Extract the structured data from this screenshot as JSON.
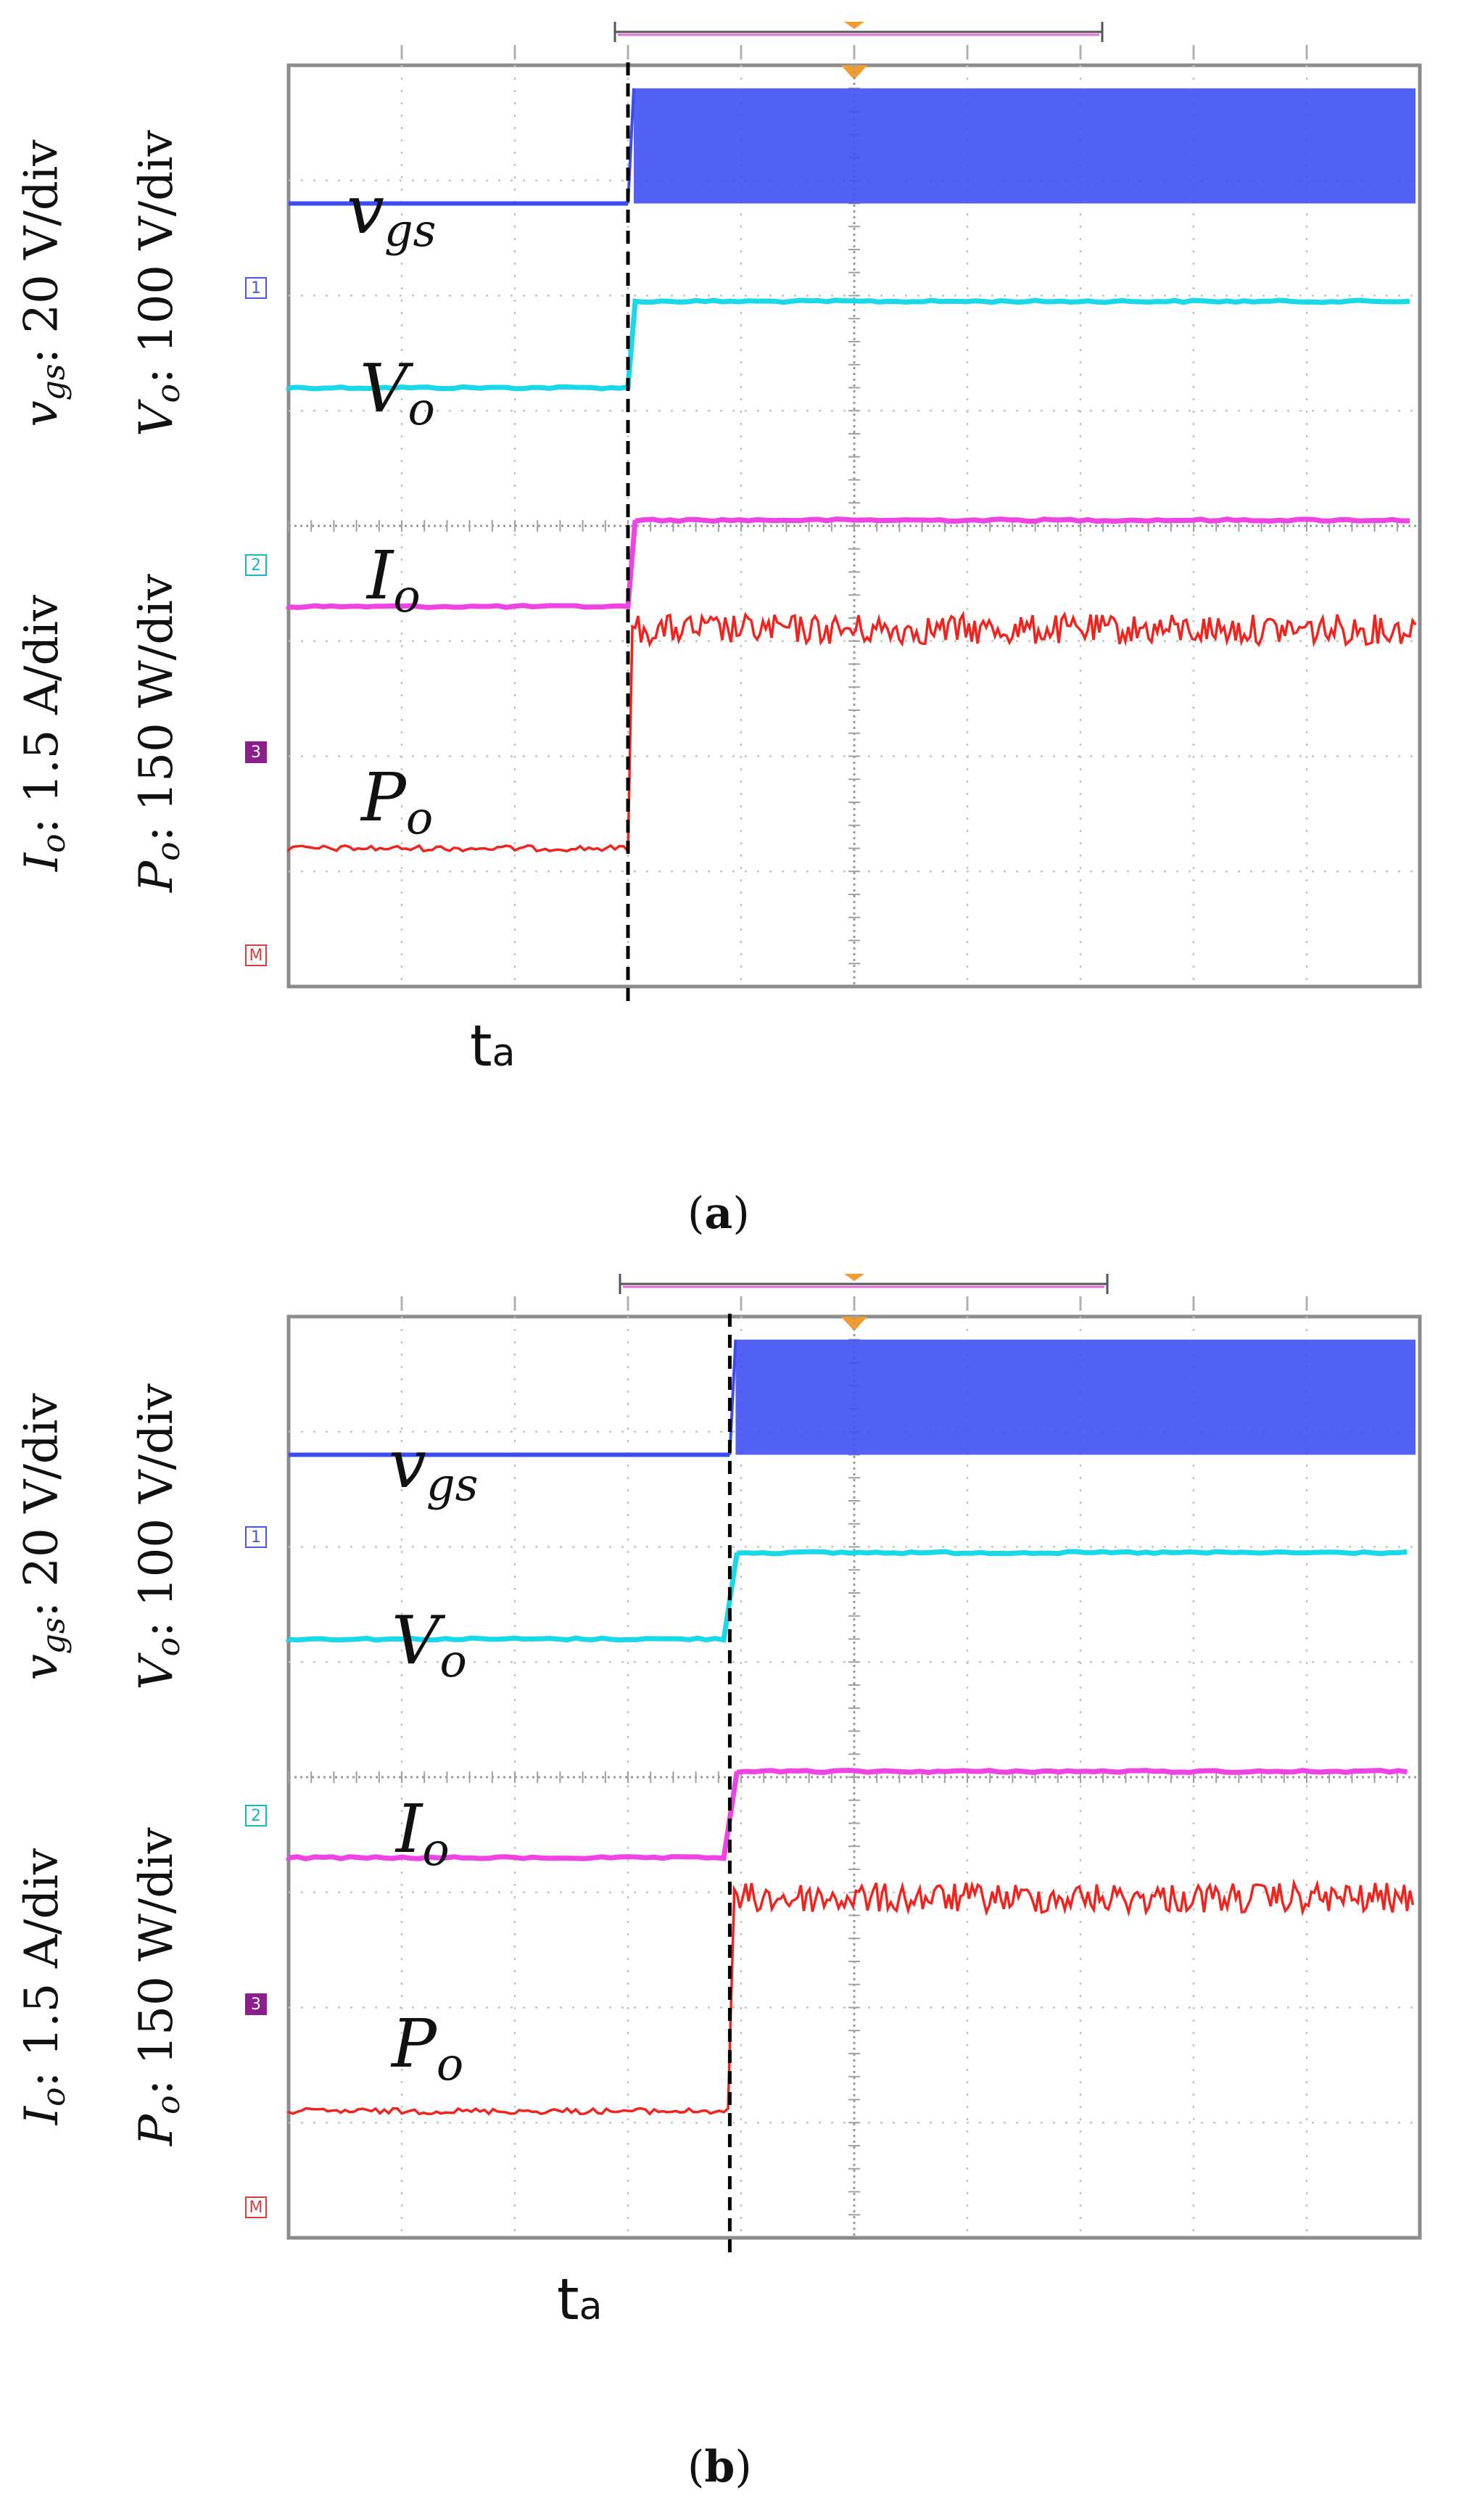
{
  "chart_data": [
    {
      "panel": "a",
      "type": "line",
      "caption": "a",
      "time_marker": {
        "label": "t",
        "subscript": "a",
        "x_div": 3.0
      },
      "grid": {
        "x_divisions": 10,
        "y_divisions": 8
      },
      "y_labels": [
        {
          "prefix": "v",
          "sub": "gs",
          "text": ": 20 V/div"
        },
        {
          "prefix": "V",
          "sub": "o",
          "text": ": 100 V/div"
        },
        {
          "prefix": "I",
          "sub": "o",
          "text": ": 1.5 A/div"
        },
        {
          "prefix": "P",
          "sub": "o",
          "text": ": 150 W/div"
        }
      ],
      "channel_markers": [
        "1",
        "2",
        "3",
        "M"
      ],
      "series": [
        {
          "name": "vgs",
          "label_main": "v",
          "label_sub": "gs",
          "color": "#3b4cf2",
          "kind": "pwm",
          "before_level": 6.8,
          "after_low": 6.8,
          "after_high": 7.8
        },
        {
          "name": "Vo",
          "label_main": "V",
          "label_sub": "o",
          "color": "#19d8e8",
          "kind": "step",
          "before_level": 5.2,
          "after_level": 5.95
        },
        {
          "name": "Io",
          "label_main": "I",
          "label_sub": "o",
          "color": "#ee44e6",
          "kind": "step",
          "before_level": 3.3,
          "after_level": 4.05
        },
        {
          "name": "Po",
          "label_main": "P",
          "label_sub": "o",
          "color": "#f0241f",
          "kind": "noisy-step",
          "before_level": 1.2,
          "after_level": 3.1
        }
      ]
    },
    {
      "panel": "b",
      "type": "line",
      "caption": "b",
      "time_marker": {
        "label": "t",
        "subscript": "a",
        "x_div": 3.9
      },
      "grid": {
        "x_divisions": 10,
        "y_divisions": 8
      },
      "y_labels": [
        {
          "prefix": "v",
          "sub": "gs",
          "text": ": 20 V/div"
        },
        {
          "prefix": "V",
          "sub": "o",
          "text": ": 100 V/div"
        },
        {
          "prefix": "I",
          "sub": "o",
          "text": ": 1.5 A/div"
        },
        {
          "prefix": "P",
          "sub": "o",
          "text": ": 150 W/div"
        }
      ],
      "channel_markers": [
        "1",
        "2",
        "3",
        "M"
      ],
      "series": [
        {
          "name": "vgs",
          "label_main": "v",
          "label_sub": "gs",
          "color": "#3b4cf2",
          "kind": "pwm",
          "before_level": 6.8,
          "after_low": 6.8,
          "after_high": 7.8
        },
        {
          "name": "Vo",
          "label_main": "V",
          "label_sub": "o",
          "color": "#19d8e8",
          "kind": "step",
          "before_level": 5.2,
          "after_level": 5.95
        },
        {
          "name": "Io",
          "label_main": "I",
          "label_sub": "o",
          "color": "#ee44e6",
          "kind": "step",
          "before_level": 3.3,
          "after_level": 4.05
        },
        {
          "name": "Po",
          "label_main": "P",
          "label_sub": "o",
          "color": "#f0241f",
          "kind": "noisy-step",
          "before_level": 1.1,
          "after_level": 2.95
        }
      ]
    }
  ]
}
